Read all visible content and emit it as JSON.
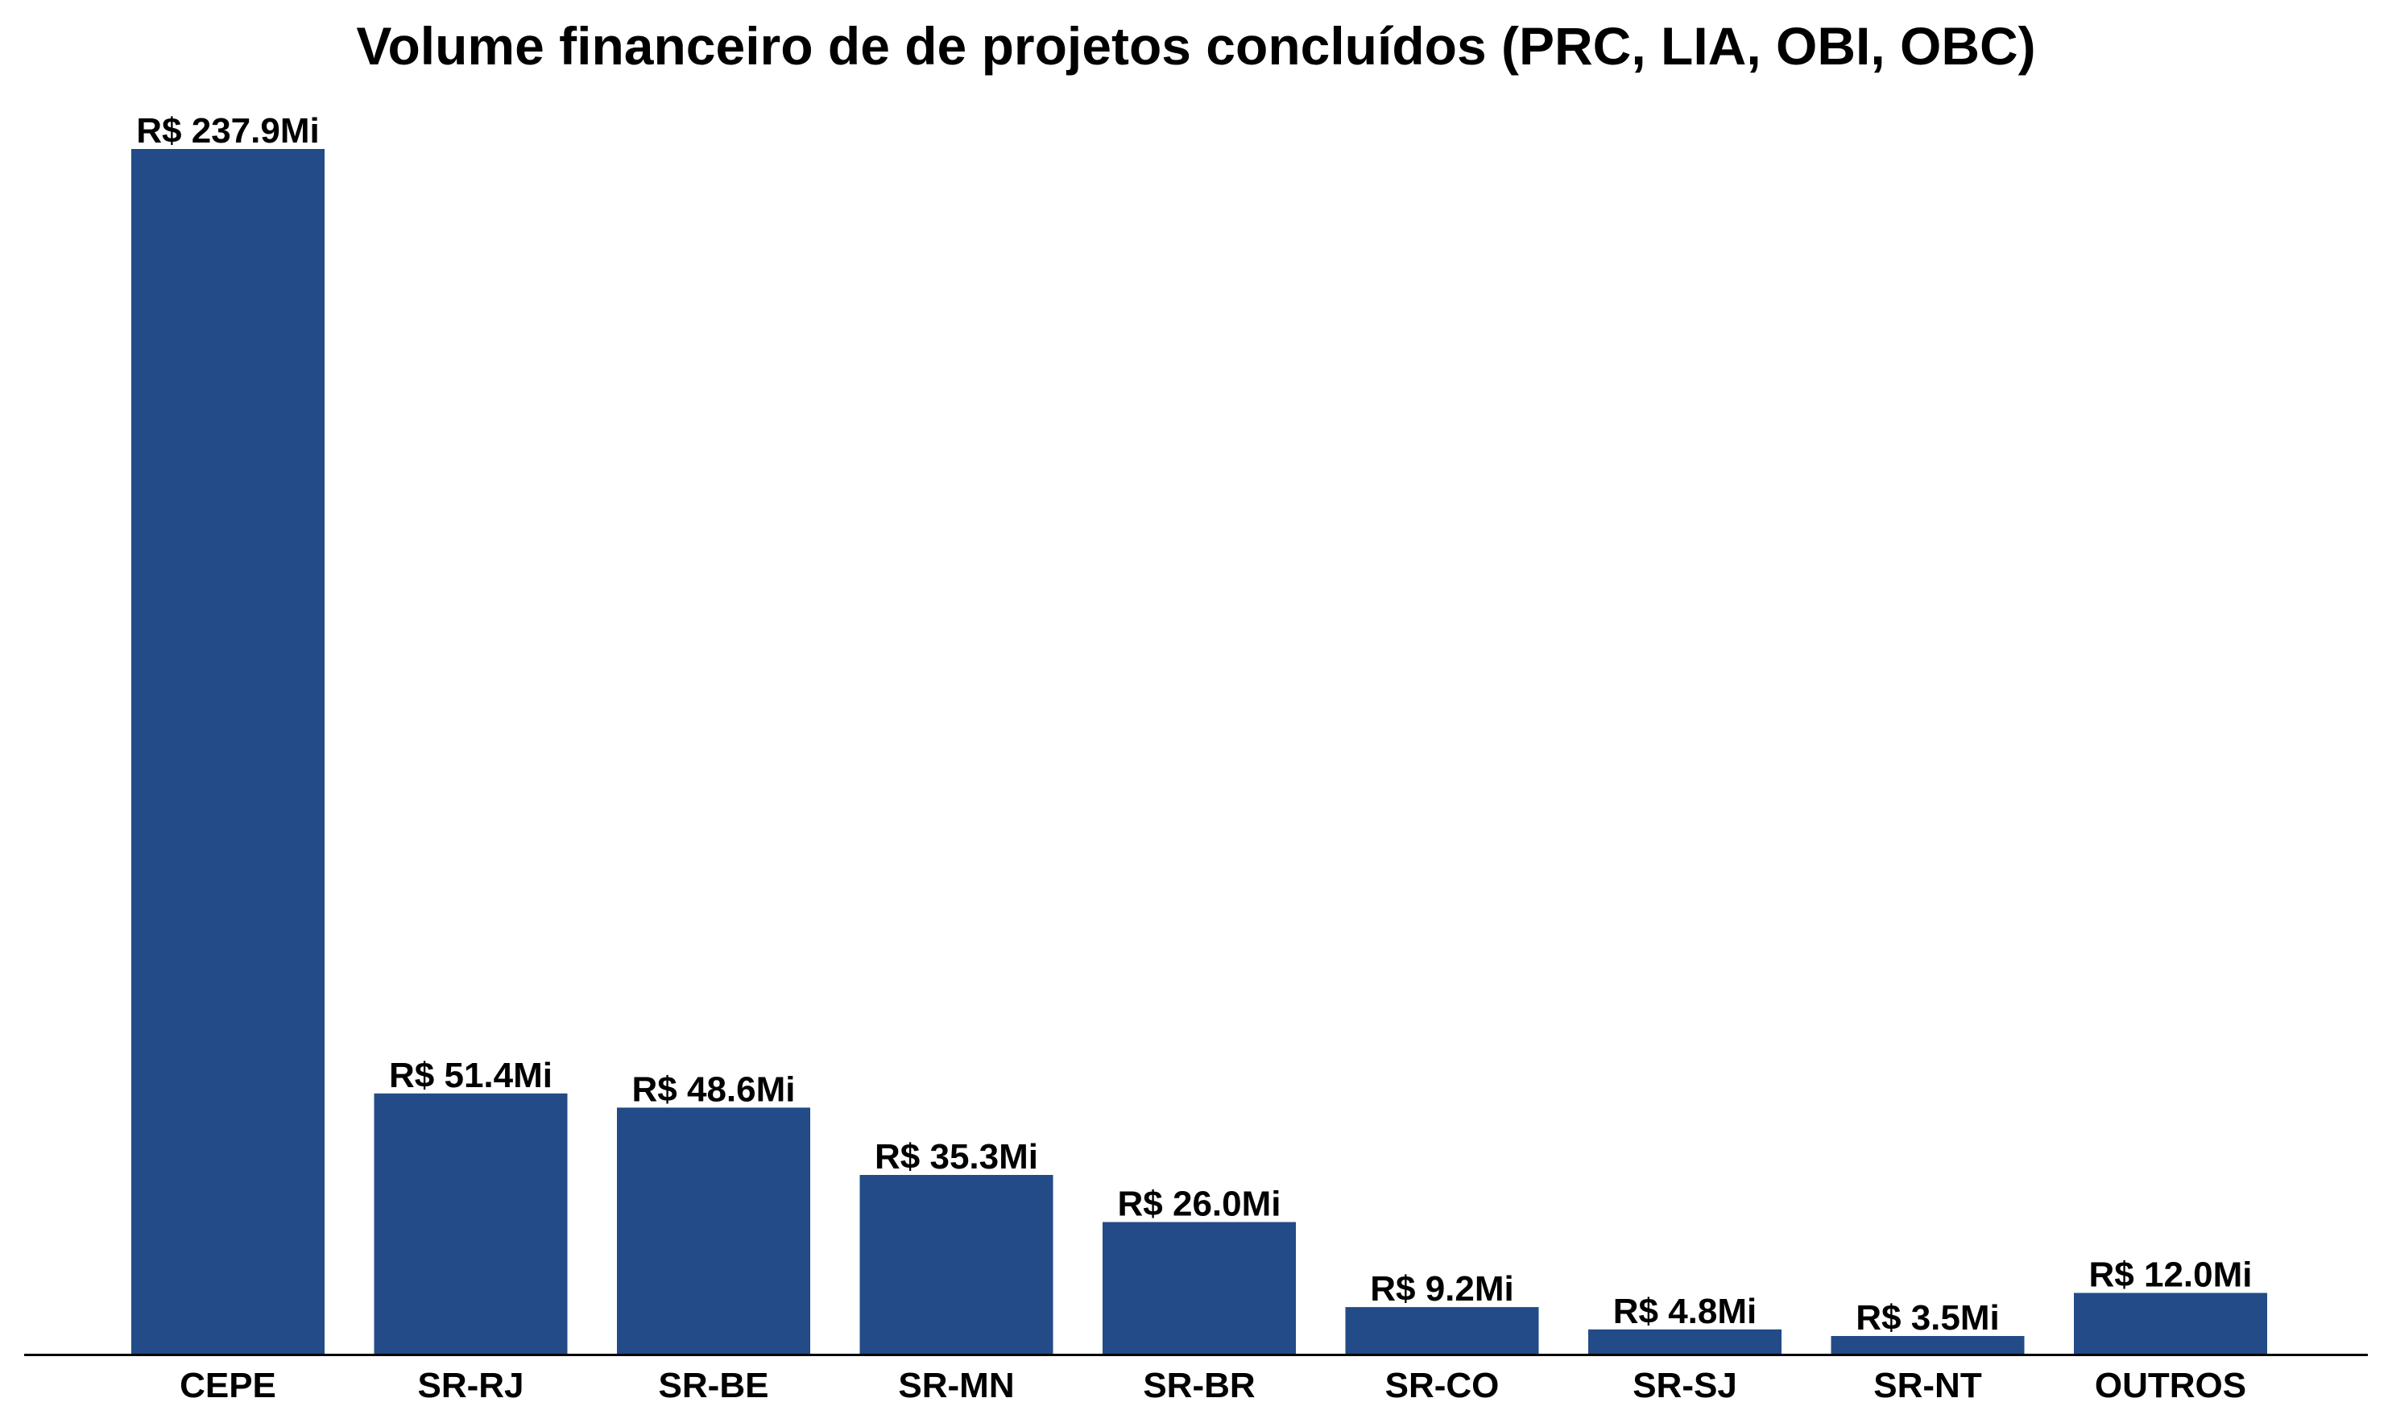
{
  "chart_data": {
    "type": "bar",
    "title": "Volume financeiro de de projetos concluídos (PRC, LIA, OBI, OBC)",
    "xlabel": "",
    "ylabel": "",
    "categories": [
      "CEPE",
      "SR-RJ",
      "SR-BE",
      "SR-MN",
      "SR-BR",
      "SR-CO",
      "SR-SJ",
      "SR-NT",
      "OUTROS"
    ],
    "values": [
      237.9,
      51.4,
      48.6,
      35.3,
      26.0,
      9.2,
      4.8,
      3.5,
      12.0
    ],
    "data_labels": [
      "R$ 237.9Mi",
      "R$ 51.4Mi",
      "R$ 48.6Mi",
      "R$ 35.3Mi",
      "R$ 26.0Mi",
      "R$ 9.2Mi",
      "R$ 4.8Mi",
      "R$ 3.5Mi",
      "R$ 12.0Mi"
    ],
    "unit": "R$ Mi",
    "ylim": [
      0,
      250
    ],
    "grid": false,
    "legend": "none",
    "colors": {
      "bar": "#224b87",
      "axis": "#000000"
    }
  }
}
